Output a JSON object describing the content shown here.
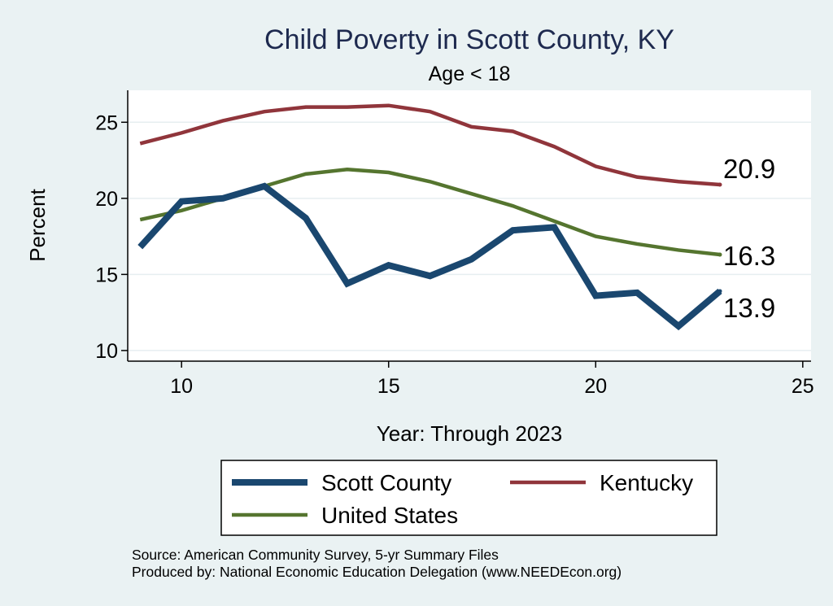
{
  "chart_data": {
    "type": "line",
    "title": "Child Poverty in Scott County, KY",
    "subtitle": "Age < 18",
    "xlabel": "Year: Through 2023",
    "ylabel": "Percent",
    "xlim": [
      8.7,
      25.2
    ],
    "ylim": [
      9.3,
      27.1
    ],
    "x_ticks": [
      10,
      15,
      20,
      25
    ],
    "y_ticks": [
      10,
      15,
      20,
      25
    ],
    "grid": true,
    "legend_position": "bottom",
    "x": [
      9,
      10,
      11,
      12,
      13,
      14,
      15,
      16,
      17,
      18,
      19,
      20,
      21,
      22,
      23
    ],
    "series": [
      {
        "name": "Scott County",
        "color": "#1a476f",
        "values": [
          16.8,
          19.8,
          20.0,
          20.8,
          18.7,
          14.4,
          15.6,
          14.9,
          16.0,
          17.9,
          18.1,
          13.6,
          13.8,
          11.6,
          13.9
        ],
        "end_label": "13.9"
      },
      {
        "name": "Kentucky",
        "color": "#90353b",
        "values": [
          23.6,
          24.3,
          25.1,
          25.7,
          26.0,
          26.0,
          26.1,
          25.7,
          24.7,
          24.4,
          23.4,
          22.1,
          21.4,
          21.1,
          20.9
        ],
        "end_label": "20.9"
      },
      {
        "name": "United States",
        "color": "#55752f",
        "values": [
          18.6,
          19.2,
          20.0,
          20.8,
          21.6,
          21.9,
          21.7,
          21.1,
          20.3,
          19.5,
          18.5,
          17.5,
          17.0,
          16.6,
          16.3
        ],
        "end_label": "16.3"
      }
    ],
    "notes": [
      "Source: American Community Survey, 5-yr Summary Files",
      "Produced by: National Economic Education Delegation (www.NEEDEcon.org)"
    ]
  }
}
